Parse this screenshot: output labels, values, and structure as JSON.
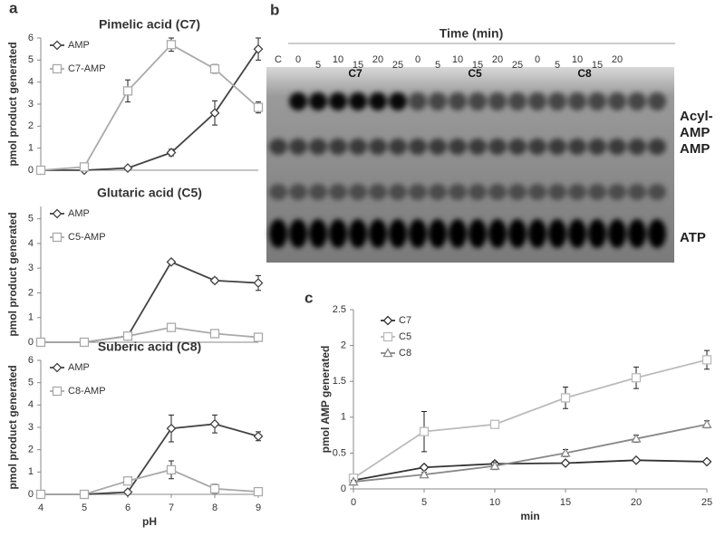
{
  "panel_labels": [
    "a",
    "b",
    "c"
  ],
  "chart_data": [
    {
      "type": "line",
      "title": "Pimelic acid (C7)",
      "ylabel": "pmol product  generated",
      "x": [
        4,
        5,
        6,
        7,
        8,
        9
      ],
      "xlim": [
        4,
        9
      ],
      "ylim": [
        0,
        6
      ],
      "yticks": [
        0,
        1,
        2,
        3,
        4,
        5,
        6
      ],
      "legend": "upper left",
      "series": [
        {
          "name": "AMP",
          "color": "#444444",
          "marker": "diamond",
          "values": [
            0,
            0,
            0.1,
            0.8,
            2.6,
            5.5
          ],
          "errors": [
            0,
            0,
            0.05,
            0.15,
            0.55,
            0.5
          ]
        },
        {
          "name": "C7-AMP",
          "color": "#aaaaaa",
          "marker": "square",
          "values": [
            0,
            0.15,
            3.6,
            5.7,
            4.6,
            2.85
          ],
          "errors": [
            0,
            0.05,
            0.5,
            0.3,
            0.2,
            0.25
          ]
        }
      ]
    },
    {
      "type": "line",
      "title": "Glutaric acid (C5)",
      "ylabel": "pmol product generated",
      "x": [
        4,
        5,
        6,
        7,
        8,
        9
      ],
      "xlim": [
        4,
        9
      ],
      "ylim": [
        0,
        5.5
      ],
      "yticks": [
        0,
        1,
        2,
        3,
        4,
        5
      ],
      "legend": "upper left",
      "series": [
        {
          "name": "AMP",
          "color": "#444444",
          "marker": "diamond",
          "values": [
            0,
            0,
            0.25,
            3.25,
            2.5,
            2.4
          ],
          "errors": [
            0,
            0,
            0.05,
            0.05,
            0.1,
            0.3
          ]
        },
        {
          "name": "C5-AMP",
          "color": "#aaaaaa",
          "marker": "square",
          "values": [
            0,
            0,
            0.25,
            0.6,
            0.35,
            0.2
          ],
          "errors": [
            0,
            0,
            0.05,
            0.1,
            0.1,
            0.05
          ]
        }
      ]
    },
    {
      "type": "line",
      "title": "Suberic acid (C8)",
      "ylabel": "pmol product generated",
      "xlabel": "pH",
      "x": [
        4,
        5,
        6,
        7,
        8,
        9
      ],
      "xlim": [
        4,
        9
      ],
      "xticks": [
        4,
        5,
        6,
        7,
        8,
        9
      ],
      "ylim": [
        0,
        6
      ],
      "yticks": [
        0,
        1,
        2,
        3,
        4,
        5,
        6
      ],
      "legend": "upper left",
      "series": [
        {
          "name": "AMP",
          "color": "#444444",
          "marker": "diamond",
          "values": [
            0,
            0,
            0.1,
            2.95,
            3.15,
            2.6
          ],
          "errors": [
            0,
            0,
            0.05,
            0.6,
            0.4,
            0.2
          ]
        },
        {
          "name": "C8-AMP",
          "color": "#aaaaaa",
          "marker": "square",
          "values": [
            0,
            0,
            0.6,
            1.1,
            0.25,
            0.12
          ],
          "errors": [
            0,
            0,
            0.1,
            0.4,
            0.2,
            0.05
          ]
        }
      ]
    },
    {
      "type": "line",
      "ylabel": "pmol AMP generated",
      "xlabel": "min",
      "x": [
        0,
        5,
        10,
        15,
        20,
        25
      ],
      "xlim": [
        0,
        25
      ],
      "xticks": [
        0,
        5,
        10,
        15,
        20,
        25
      ],
      "ylim": [
        0,
        2.5
      ],
      "yticks": [
        0,
        0.5,
        1,
        1.5,
        2,
        2.5
      ],
      "legend": "upper left",
      "series": [
        {
          "name": "C7",
          "color": "#333333",
          "marker": "diamond",
          "values": [
            0.12,
            0.3,
            0.35,
            0.36,
            0.4,
            0.38
          ],
          "errors": [
            0.02,
            0.03,
            0.03,
            0.02,
            0.02,
            0.02
          ]
        },
        {
          "name": "C5",
          "color": "#bbbbbb",
          "marker": "square",
          "values": [
            0.15,
            0.8,
            0.9,
            1.27,
            1.55,
            1.8
          ],
          "errors": [
            0.02,
            0.28,
            0.05,
            0.15,
            0.15,
            0.13
          ]
        },
        {
          "name": "C8",
          "color": "#888888",
          "marker": "triangle",
          "values": [
            0.1,
            0.2,
            0.32,
            0.5,
            0.7,
            0.9
          ],
          "errors": [
            0.02,
            0.03,
            0.05,
            0.05,
            0.05,
            0.05
          ]
        }
      ]
    }
  ],
  "gel": {
    "time_label": "Time (min)",
    "control_lane": "C",
    "groups": [
      {
        "name": "C7",
        "times": [
          0,
          5,
          10,
          15,
          20,
          25
        ]
      },
      {
        "name": "C5",
        "times": [
          0,
          5,
          10,
          15,
          20,
          25
        ]
      },
      {
        "name": "C8",
        "times": [
          0,
          5,
          10,
          15,
          20
        ]
      }
    ],
    "bands": [
      "Acyl-AMP",
      "AMP",
      "ATP"
    ]
  }
}
